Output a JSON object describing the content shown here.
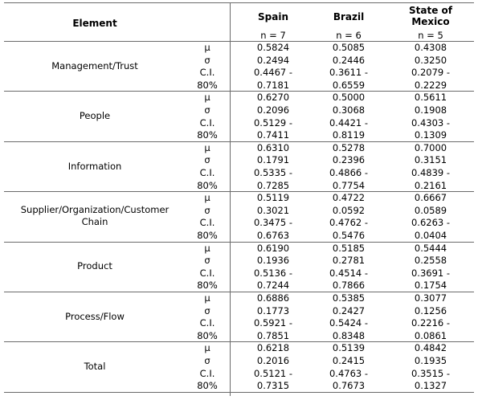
{
  "table": {
    "header": {
      "element_label": "Element",
      "columns": [
        {
          "name_lines": [
            "Spain"
          ],
          "n": "n = 7"
        },
        {
          "name_lines": [
            "Brazil"
          ],
          "n": "n = 6"
        },
        {
          "name_lines": [
            "State of",
            "Mexico"
          ],
          "n": "n = 5"
        }
      ]
    },
    "stat_labels": [
      "μ",
      "σ",
      "C.I.",
      "80%"
    ],
    "groups": [
      {
        "name_lines": [
          "Management/Trust"
        ],
        "values": [
          [
            "0.5824",
            "0.5085",
            "0.4308"
          ],
          [
            "0.2494",
            "0.2446",
            "0.3250"
          ],
          [
            "0.4467 -",
            "0.3611 -",
            "0.2079 -"
          ],
          [
            "0.7181",
            "0.6559",
            "0.2229"
          ]
        ]
      },
      {
        "name_lines": [
          "People"
        ],
        "values": [
          [
            "0.6270",
            "0.5000",
            "0.5611"
          ],
          [
            "0.2096",
            "0.3068",
            "0.1908"
          ],
          [
            "0.5129 -",
            "0.4421 -",
            "0.4303 -"
          ],
          [
            "0.7411",
            "0.8119",
            "0.1309"
          ]
        ]
      },
      {
        "name_lines": [
          "Information"
        ],
        "values": [
          [
            "0.6310",
            "0.5278",
            "0.7000"
          ],
          [
            "0.1791",
            "0.2396",
            "0.3151"
          ],
          [
            "0.5335 -",
            "0.4866 -",
            "0.4839 -"
          ],
          [
            "0.7285",
            "0.7754",
            "0.2161"
          ]
        ]
      },
      {
        "name_lines": [
          "Supplier/Organization/Customer",
          "Chain"
        ],
        "values": [
          [
            "0.5119",
            "0.4722",
            "0.6667"
          ],
          [
            "0.3021",
            "0.0592",
            "0.0589"
          ],
          [
            "0.3475 -",
            "0.4762 -",
            "0.6263 -"
          ],
          [
            "0.6763",
            "0.5476",
            "0.0404"
          ]
        ]
      },
      {
        "name_lines": [
          "Product"
        ],
        "values": [
          [
            "0.6190",
            "0.5185",
            "0.5444"
          ],
          [
            "0.1936",
            "0.2781",
            "0.2558"
          ],
          [
            "0.5136 -",
            "0.4514 -",
            "0.3691 -"
          ],
          [
            "0.7244",
            "0.7866",
            "0.1754"
          ]
        ]
      },
      {
        "name_lines": [
          "Process/Flow"
        ],
        "values": [
          [
            "0.6886",
            "0.5385",
            "0.3077"
          ],
          [
            "0.1773",
            "0.2427",
            "0.1256"
          ],
          [
            "0.5921 -",
            "0.5424 -",
            "0.2216 -"
          ],
          [
            "0.7851",
            "0.8348",
            "0.0861"
          ]
        ]
      },
      {
        "name_lines": [
          "Total"
        ],
        "values": [
          [
            "0.6218",
            "0.5139",
            "0.4842"
          ],
          [
            "0.2016",
            "0.2415",
            "0.1935"
          ],
          [
            "0.5121 -",
            "0.4763 -",
            "0.3515 -"
          ],
          [
            "0.7315",
            "0.7673",
            "0.1327"
          ]
        ]
      }
    ]
  }
}
